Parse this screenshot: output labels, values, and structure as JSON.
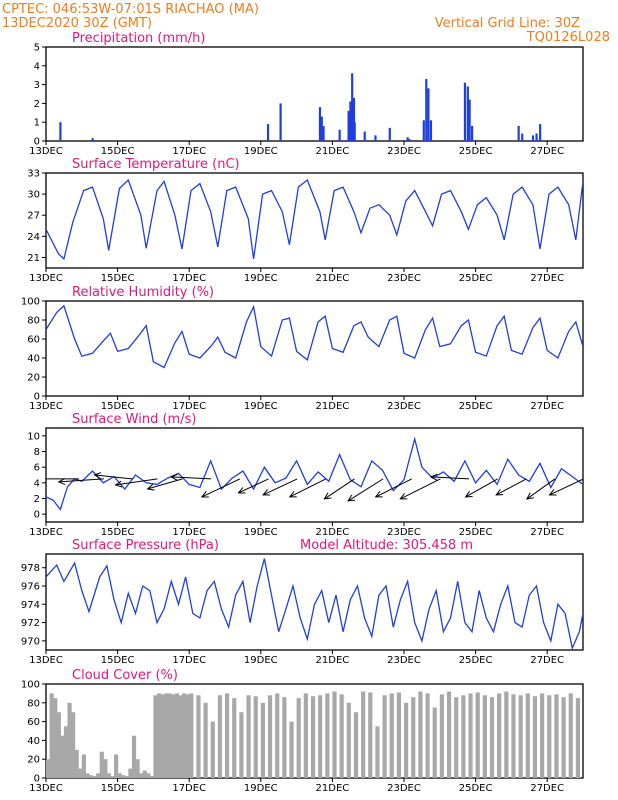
{
  "header": {
    "line1": "CPTEC:  046:53W-07:01S  RIACHAO (MA)",
    "line2": "13DEC2020 30Z (GMT)",
    "grid_note": "Vertical Grid Line: 30Z",
    "run_code": "TQ0126L028"
  },
  "colors": {
    "header": "#f07c1e",
    "title": "#e0187a",
    "series": "#1f3fe0",
    "cloud": "#a8a8a8"
  },
  "x_ticks": [
    "13DEC",
    "15DEC",
    "17DEC",
    "19DEC",
    "21DEC",
    "23DEC",
    "25DEC",
    "27DEC"
  ],
  "x_tick_day": [
    13,
    15,
    17,
    19,
    21,
    23,
    25,
    27
  ],
  "x_range_days": [
    13,
    28
  ],
  "chart_data": [
    {
      "type": "bar",
      "title": "Precipitation (mm/h)",
      "ylim": [
        0,
        5
      ],
      "yticks": [
        "0",
        "1",
        "2",
        "3",
        "4",
        "5"
      ],
      "x": [
        13.4,
        14.3,
        19.2,
        19.55,
        20.65,
        20.7,
        20.75,
        21.2,
        21.45,
        21.5,
        21.55,
        21.6,
        21.62,
        21.9,
        22.2,
        22.6,
        23.1,
        23.15,
        23.55,
        23.62,
        23.68,
        23.75,
        24.7,
        24.78,
        24.83,
        24.9,
        26.2,
        26.3,
        26.6,
        26.7,
        26.8
      ],
      "values": [
        1.0,
        0.15,
        0.9,
        2.0,
        1.8,
        1.3,
        0.8,
        0.6,
        1.6,
        2.1,
        3.6,
        2.3,
        1.0,
        0.5,
        0.3,
        0.7,
        0.2,
        0.1,
        1.1,
        3.3,
        2.8,
        1.1,
        3.1,
        2.9,
        2.2,
        0.8,
        0.8,
        0.4,
        0.3,
        0.4,
        0.9
      ]
    },
    {
      "type": "line",
      "title": "Surface Temperature (nC)",
      "ylim": [
        19.5,
        33
      ],
      "yticks": [
        "21",
        "24",
        "27",
        "30",
        "33"
      ],
      "x": [
        13.0,
        13.35,
        13.5,
        13.75,
        14.05,
        14.3,
        14.6,
        14.75,
        15.05,
        15.3,
        15.65,
        15.8,
        16.1,
        16.3,
        16.6,
        16.8,
        17.05,
        17.3,
        17.6,
        17.8,
        18.05,
        18.3,
        18.65,
        18.8,
        19.05,
        19.3,
        19.6,
        19.8,
        20.05,
        20.3,
        20.65,
        20.8,
        21.05,
        21.3,
        21.6,
        21.8,
        22.05,
        22.3,
        22.6,
        22.8,
        23.05,
        23.3,
        23.6,
        23.8,
        24.05,
        24.3,
        24.6,
        24.8,
        25.05,
        25.3,
        25.6,
        25.8,
        26.05,
        26.3,
        26.6,
        26.8,
        27.05,
        27.3,
        27.6,
        27.8,
        28.0
      ],
      "values": [
        25,
        21.5,
        20.8,
        26,
        30.5,
        31,
        26.5,
        22,
        30.8,
        32,
        27,
        22.3,
        30.5,
        31.8,
        27,
        22.2,
        30.5,
        31.5,
        27.5,
        22.5,
        30.5,
        31,
        26.5,
        20.8,
        30,
        30.5,
        27.5,
        22.8,
        31,
        32,
        27.5,
        23.5,
        30.5,
        31,
        27.5,
        24.5,
        28,
        28.5,
        27,
        24.2,
        29,
        30.5,
        27.5,
        25.5,
        30,
        30.5,
        27.5,
        25,
        28.5,
        29.5,
        27,
        23.5,
        30,
        31,
        28.5,
        22.2,
        30,
        31,
        28.5,
        23.5,
        31.8
      ]
    },
    {
      "type": "line",
      "title": "Relative Humidity (%)",
      "ylim": [
        0,
        100
      ],
      "yticks": [
        "0",
        "20",
        "40",
        "60",
        "80",
        "100"
      ],
      "x": [
        13.0,
        13.3,
        13.5,
        13.8,
        14.0,
        14.3,
        14.6,
        14.8,
        15.0,
        15.3,
        15.6,
        15.8,
        16.0,
        16.3,
        16.6,
        16.8,
        17.0,
        17.3,
        17.6,
        17.8,
        18.0,
        18.3,
        18.6,
        18.8,
        19.0,
        19.3,
        19.6,
        19.8,
        20.0,
        20.3,
        20.6,
        20.8,
        21.0,
        21.3,
        21.6,
        21.8,
        22.0,
        22.3,
        22.6,
        22.8,
        23.0,
        23.3,
        23.6,
        23.8,
        24.0,
        24.3,
        24.6,
        24.8,
        25.0,
        25.3,
        25.6,
        25.8,
        26.0,
        26.3,
        26.6,
        26.8,
        27.0,
        27.3,
        27.6,
        27.8,
        28.0
      ],
      "values": [
        70,
        88,
        95,
        60,
        42,
        45,
        58,
        66,
        47,
        50,
        64,
        74,
        36,
        30,
        56,
        68,
        44,
        40,
        52,
        62,
        46,
        40,
        78,
        94,
        52,
        42,
        80,
        82,
        47,
        38,
        78,
        84,
        50,
        46,
        74,
        78,
        62,
        52,
        80,
        84,
        45,
        40,
        70,
        82,
        52,
        55,
        74,
        80,
        46,
        42,
        74,
        84,
        48,
        44,
        72,
        82,
        48,
        40,
        68,
        78,
        52
      ]
    },
    {
      "type": "line",
      "title": "Surface Wind (m/s)",
      "ylim": [
        -1,
        11
      ],
      "yticks": [
        "0",
        "2",
        "4",
        "6",
        "8",
        "10"
      ],
      "x": [
        13.0,
        13.2,
        13.4,
        13.6,
        13.8,
        14.0,
        14.3,
        14.6,
        14.9,
        15.2,
        15.5,
        15.8,
        16.1,
        16.4,
        16.7,
        17.0,
        17.3,
        17.6,
        17.9,
        18.2,
        18.5,
        18.8,
        19.1,
        19.4,
        19.7,
        20.0,
        20.3,
        20.6,
        20.9,
        21.2,
        21.5,
        21.8,
        22.1,
        22.4,
        22.7,
        23.0,
        23.3,
        23.5,
        23.8,
        24.1,
        24.4,
        24.7,
        25.0,
        25.3,
        25.6,
        25.9,
        26.2,
        26.5,
        26.8,
        27.1,
        27.4,
        27.7,
        28.0
      ],
      "values": [
        2.2,
        1.8,
        0.6,
        3.5,
        4.5,
        4.2,
        5.5,
        4.0,
        4.8,
        3.2,
        5.0,
        4.0,
        3.8,
        4.6,
        5.2,
        3.8,
        3.4,
        6.8,
        3.2,
        4.6,
        5.5,
        3.2,
        6.0,
        4.0,
        4.6,
        6.8,
        3.8,
        5.4,
        4.2,
        7.6,
        4.4,
        3.5,
        6.8,
        5.6,
        3.0,
        4.4,
        9.6,
        6.0,
        4.6,
        5.4,
        4.2,
        6.8,
        4.0,
        5.6,
        3.8,
        7.0,
        5.0,
        4.2,
        6.5,
        3.4,
        5.8,
        4.8,
        3.8
      ]
    },
    {
      "type": "line",
      "title": "Surface Pressure (hPa)",
      "annotation": "Model Altitude: 305.458  m",
      "ylim": [
        969,
        979.5
      ],
      "yticks": [
        "970",
        "972",
        "974",
        "976",
        "978"
      ],
      "x": [
        13.0,
        13.3,
        13.5,
        13.8,
        14.0,
        14.2,
        14.5,
        14.7,
        14.9,
        15.1,
        15.3,
        15.5,
        15.7,
        15.9,
        16.1,
        16.3,
        16.5,
        16.7,
        16.9,
        17.1,
        17.3,
        17.5,
        17.7,
        17.9,
        18.1,
        18.3,
        18.5,
        18.7,
        18.9,
        19.1,
        19.3,
        19.5,
        19.7,
        19.9,
        20.1,
        20.3,
        20.5,
        20.7,
        20.9,
        21.1,
        21.3,
        21.5,
        21.7,
        21.9,
        22.1,
        22.3,
        22.5,
        22.7,
        22.9,
        23.1,
        23.3,
        23.5,
        23.7,
        23.9,
        24.1,
        24.3,
        24.5,
        24.7,
        24.9,
        25.1,
        25.3,
        25.5,
        25.7,
        25.9,
        26.1,
        26.3,
        26.5,
        26.7,
        26.9,
        27.1,
        27.3,
        27.5,
        27.7,
        27.9,
        28.0
      ],
      "values": [
        977,
        978.3,
        976.5,
        978.5,
        975.5,
        973.2,
        977,
        978.2,
        974.5,
        972,
        975.2,
        973,
        976,
        975.5,
        972,
        973.5,
        976.5,
        974,
        977,
        973,
        972.5,
        975.5,
        976.5,
        973.5,
        971.5,
        975,
        976.5,
        972,
        976,
        979,
        975,
        971,
        973.5,
        976,
        972.5,
        970.2,
        974,
        975.5,
        972,
        975,
        971,
        974.5,
        976,
        972.5,
        970.5,
        975,
        976,
        971.5,
        974.5,
        976.5,
        972,
        970,
        973.5,
        975.5,
        971,
        972.5,
        976.5,
        972,
        971,
        975.5,
        972.5,
        971,
        974,
        976,
        972,
        971.5,
        975,
        976,
        972,
        970,
        974,
        973,
        969.2,
        971,
        973
      ]
    },
    {
      "type": "area",
      "title": "Cloud Cover (%)",
      "ylim": [
        0,
        100
      ],
      "yticks": [
        "0",
        "20",
        "40",
        "60",
        "80",
        "100"
      ],
      "x": [
        13.0,
        13.1,
        13.2,
        13.3,
        13.4,
        13.5,
        13.6,
        13.7,
        13.8,
        13.9,
        14.0,
        14.1,
        14.2,
        14.3,
        14.4,
        14.5,
        14.6,
        14.7,
        14.8,
        14.9,
        15.0,
        15.1,
        15.2,
        15.3,
        15.4,
        15.5,
        15.6,
        15.7,
        15.8,
        15.9,
        16.0,
        16.1,
        16.2,
        16.3,
        16.4,
        16.5,
        16.6,
        16.7,
        16.8,
        16.9,
        17.0,
        17.2,
        17.4,
        17.6,
        17.8,
        18.0,
        18.2,
        18.4,
        18.6,
        18.8,
        19.0,
        19.2,
        19.4,
        19.6,
        19.8,
        20.0,
        20.2,
        20.4,
        20.6,
        20.8,
        21.0,
        21.2,
        21.4,
        21.6,
        21.8,
        22.0,
        22.2,
        22.4,
        22.6,
        22.8,
        23.0,
        23.2,
        23.4,
        23.6,
        23.8,
        24.0,
        24.2,
        24.4,
        24.6,
        24.8,
        25.0,
        25.2,
        25.4,
        25.6,
        25.8,
        26.0,
        26.2,
        26.4,
        26.6,
        26.8,
        27.0,
        27.2,
        27.4,
        27.6,
        27.8,
        28.0
      ],
      "values": [
        20,
        90,
        85,
        70,
        45,
        55,
        80,
        70,
        30,
        10,
        25,
        5,
        3,
        2,
        5,
        28,
        20,
        5,
        2,
        25,
        5,
        3,
        2,
        10,
        45,
        20,
        5,
        8,
        5,
        2,
        88,
        90,
        89,
        90,
        90,
        89,
        90,
        88,
        90,
        89,
        90,
        88,
        80,
        60,
        88,
        90,
        85,
        70,
        88,
        87,
        80,
        88,
        90,
        86,
        60,
        85,
        90,
        87,
        88,
        90,
        92,
        89,
        80,
        70,
        92,
        91,
        55,
        88,
        90,
        91,
        80,
        86,
        92,
        90,
        75,
        89,
        92,
        86,
        88,
        90,
        91,
        88,
        86,
        90,
        92,
        89,
        88,
        90,
        87,
        90,
        88,
        89,
        86,
        90,
        85,
        90
      ]
    }
  ]
}
